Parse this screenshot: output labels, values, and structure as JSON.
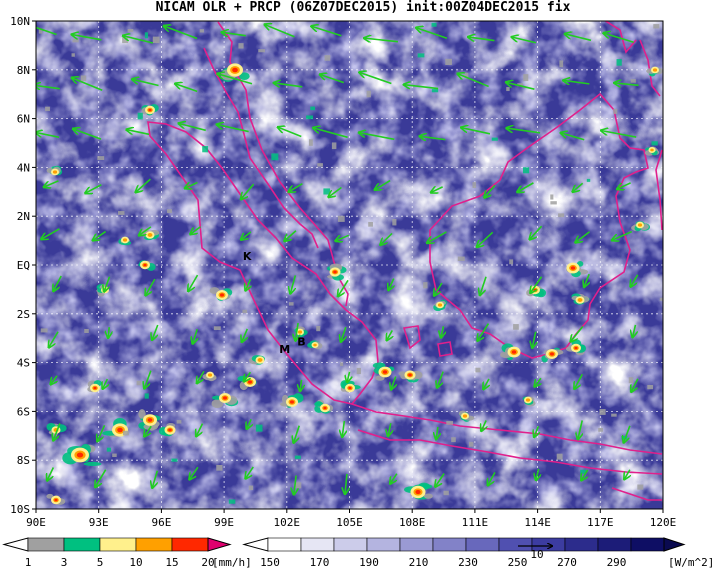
{
  "title": "NICAM OLR + PRCP (06Z07DEC2015) init:00Z04DEC2015 fix",
  "map": {
    "lon_range": [
      90,
      120
    ],
    "lat_range": [
      -10,
      10
    ],
    "lat_labels": [
      "10N",
      "8N",
      "6N",
      "4N",
      "2N",
      "EQ",
      "2S",
      "4S",
      "6S",
      "8S",
      "10S"
    ],
    "lon_labels": [
      "90E",
      "93E",
      "96E",
      "99E",
      "102E",
      "105E",
      "108E",
      "111E",
      "114E",
      "117E",
      "120E"
    ],
    "place_markers": [
      {
        "label": "K",
        "lon": 100.1,
        "lat": 0.2
      },
      {
        "label": "M",
        "lon": 101.9,
        "lat": -3.6
      },
      {
        "label": "B",
        "lon": 102.7,
        "lat": -3.3
      }
    ],
    "colors": {
      "coast": "#e0208c",
      "wind": "#22cc22",
      "ocean_dark": "#2c2c8c",
      "cloud": "#ffffff"
    }
  },
  "precip_colorbar": {
    "ticks": [
      "1",
      "3",
      "5",
      "10",
      "15",
      "20"
    ],
    "unit": "[mm/h]",
    "colors": [
      "#a0a0a0",
      "#00c080",
      "#fff08c",
      "#ffa000",
      "#ff2800",
      "#e0006e"
    ]
  },
  "olr_colorbar": {
    "ticks": [
      "150",
      "170",
      "190",
      "210",
      "230",
      "250",
      "270",
      "290"
    ],
    "unit": "[W/m^2]",
    "colors": [
      "#ffffff",
      "#e6e6f4",
      "#ccccea",
      "#b4b4e0",
      "#9a9ad4",
      "#8282c8",
      "#6868bc",
      "#5050b0",
      "#3c3ca0",
      "#2c2c8c",
      "#1c1c78",
      "#0e0e64"
    ]
  },
  "wind_reference": {
    "label": "10"
  }
}
